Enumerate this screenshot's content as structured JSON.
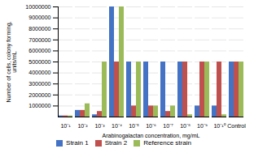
{
  "chart_data": {
    "type": "bar",
    "categories": [
      "10⁻¹",
      "10⁻²",
      "10⁻³",
      "10⁻⁴",
      "10⁻⁵",
      "10⁻⁶",
      "10⁻⁷",
      "10⁻⁸",
      "10⁻⁹",
      "10⁻¹⁰",
      "Control"
    ],
    "series": [
      {
        "name": "Strain 1",
        "color": "#4472c4",
        "values": [
          100000,
          600000,
          200000,
          10000000,
          5000000,
          5000000,
          5000000,
          5000000,
          1000000,
          1000000,
          5000000
        ]
      },
      {
        "name": "Strain 2",
        "color": "#c0504d",
        "values": [
          100000,
          600000,
          500000,
          5000000,
          1000000,
          1000000,
          500000,
          5000000,
          5000000,
          5000000,
          5000000
        ]
      },
      {
        "name": "Reference strain",
        "color": "#9bbb59",
        "values": [
          100000,
          1200000,
          5000000,
          10000000,
          5000000,
          1000000,
          1000000,
          200000,
          5000000,
          200000,
          5000000
        ]
      }
    ],
    "xlabel": "Arabinogalactan concentration, mg/mL",
    "ylabel": "Number of cells, colony forming,\nunits/mL",
    "ylim": [
      0,
      10000000
    ],
    "yticks": [
      1000000,
      2000000,
      3000000,
      4000000,
      5000000,
      6000000,
      7000000,
      8000000,
      9000000,
      10000000
    ],
    "grid": true,
    "legend": "bottom"
  }
}
